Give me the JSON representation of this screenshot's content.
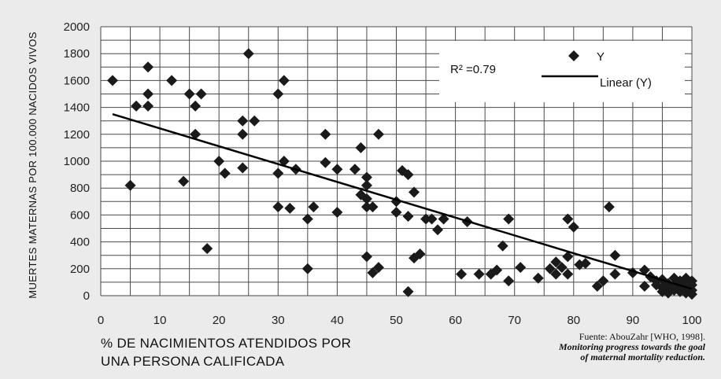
{
  "chart_data": {
    "type": "scatter",
    "ylabel": "MUERTES MATERNAS POR 100.000 NACIDOS VIVOS",
    "xlabel_lines": [
      "% DE NACIMIENTOS ATENDIDOS POR",
      "UNA PERSONA CALIFICADA"
    ],
    "xlim": [
      0,
      100
    ],
    "ylim": [
      0,
      2000
    ],
    "xticks": [
      "0",
      "10",
      "20",
      "30",
      "40",
      "50",
      "60",
      "70",
      "80",
      "90",
      "100"
    ],
    "yticks": [
      "0",
      "200",
      "400",
      "600",
      "800",
      "1000",
      "1200",
      "1400",
      "1600",
      "1800",
      "2000"
    ],
    "grid": true,
    "annotation_r2": "R² =0.79",
    "legend": {
      "position": "top-right",
      "marker_label": "Y",
      "line_label": "Linear (Y)"
    },
    "trendline": {
      "x": [
        2,
        100
      ],
      "y": [
        1350,
        50
      ]
    },
    "series": [
      {
        "name": "Y",
        "points": [
          [
            2,
            1600
          ],
          [
            5,
            820
          ],
          [
            6,
            1410
          ],
          [
            8,
            1700
          ],
          [
            8,
            1500
          ],
          [
            8,
            1410
          ],
          [
            12,
            1600
          ],
          [
            14,
            850
          ],
          [
            15,
            1500
          ],
          [
            16,
            1410
          ],
          [
            16,
            1200
          ],
          [
            17,
            1500
          ],
          [
            18,
            350
          ],
          [
            20,
            1000
          ],
          [
            21,
            910
          ],
          [
            24,
            1300
          ],
          [
            24,
            1200
          ],
          [
            24,
            950
          ],
          [
            25,
            1800
          ],
          [
            26,
            1300
          ],
          [
            30,
            1500
          ],
          [
            30,
            910
          ],
          [
            30,
            660
          ],
          [
            31,
            1600
          ],
          [
            31,
            1000
          ],
          [
            32,
            650
          ],
          [
            33,
            940
          ],
          [
            35,
            570
          ],
          [
            35,
            200
          ],
          [
            36,
            660
          ],
          [
            38,
            1200
          ],
          [
            38,
            990
          ],
          [
            40,
            940
          ],
          [
            40,
            620
          ],
          [
            43,
            940
          ],
          [
            44,
            1100
          ],
          [
            44,
            750
          ],
          [
            45,
            880
          ],
          [
            45,
            820
          ],
          [
            45,
            720
          ],
          [
            45,
            660
          ],
          [
            45,
            290
          ],
          [
            46,
            660
          ],
          [
            46,
            170
          ],
          [
            47,
            210
          ],
          [
            47,
            1200
          ],
          [
            50,
            700
          ],
          [
            50,
            620
          ],
          [
            51,
            930
          ],
          [
            52,
            900
          ],
          [
            52,
            590
          ],
          [
            52,
            30
          ],
          [
            53,
            770
          ],
          [
            53,
            280
          ],
          [
            54,
            310
          ],
          [
            55,
            570
          ],
          [
            56,
            570
          ],
          [
            57,
            490
          ],
          [
            58,
            570
          ],
          [
            61,
            160
          ],
          [
            62,
            550
          ],
          [
            64,
            160
          ],
          [
            66,
            160
          ],
          [
            67,
            190
          ],
          [
            68,
            370
          ],
          [
            69,
            570
          ],
          [
            69,
            110
          ],
          [
            71,
            210
          ],
          [
            74,
            130
          ],
          [
            76,
            200
          ],
          [
            77,
            250
          ],
          [
            77,
            160
          ],
          [
            78,
            210
          ],
          [
            79,
            570
          ],
          [
            79,
            290
          ],
          [
            79,
            160
          ],
          [
            80,
            510
          ],
          [
            81,
            230
          ],
          [
            82,
            240
          ],
          [
            84,
            70
          ],
          [
            85,
            110
          ],
          [
            86,
            660
          ],
          [
            87,
            300
          ],
          [
            87,
            160
          ],
          [
            90,
            170
          ],
          [
            92,
            190
          ],
          [
            92,
            70
          ],
          [
            93,
            140
          ],
          [
            94,
            110
          ],
          [
            94,
            80
          ],
          [
            95,
            120
          ],
          [
            95,
            60
          ],
          [
            95,
            30
          ],
          [
            96,
            90
          ],
          [
            96,
            50
          ],
          [
            96,
            20
          ],
          [
            97,
            130
          ],
          [
            97,
            80
          ],
          [
            97,
            40
          ],
          [
            98,
            110
          ],
          [
            98,
            70
          ],
          [
            98,
            30
          ],
          [
            99,
            130
          ],
          [
            99,
            90
          ],
          [
            99,
            50
          ],
          [
            99,
            20
          ],
          [
            100,
            110
          ],
          [
            100,
            80
          ],
          [
            100,
            40
          ],
          [
            100,
            10
          ]
        ]
      }
    ]
  },
  "source": {
    "line1": "Fuente: AbouZahr [WHO, 1998].",
    "line2": "Monitoring progress towards the goal",
    "line3": "of maternal mortality reduction."
  }
}
